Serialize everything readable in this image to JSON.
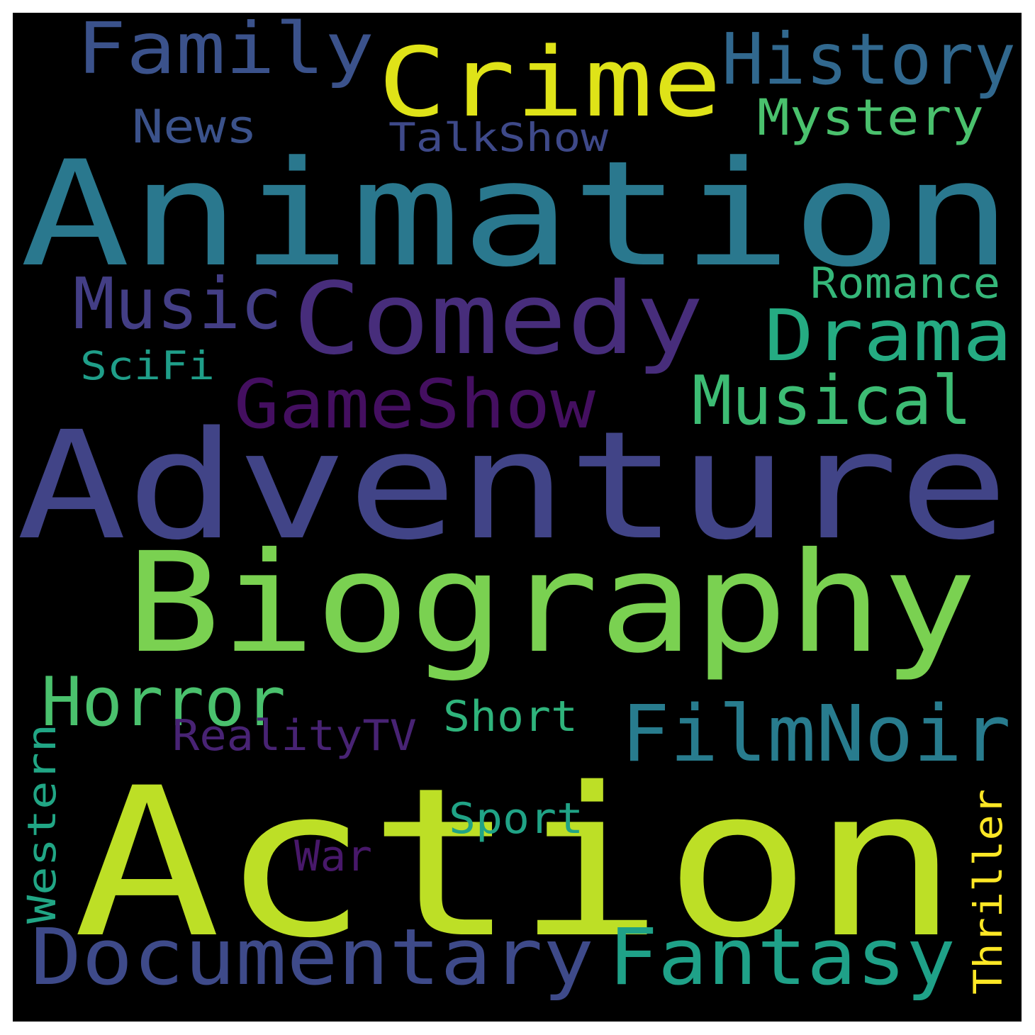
{
  "background_color": "#000000",
  "words": [
    {
      "text": "Action",
      "color": "#bddf26"
    },
    {
      "text": "Adventure",
      "color": "#414487"
    },
    {
      "text": "Animation",
      "color": "#2a788e"
    },
    {
      "text": "Biography",
      "color": "#7ad151"
    },
    {
      "text": "Comedy",
      "color": "#472d7b"
    },
    {
      "text": "Crime",
      "color": "#dfe318"
    },
    {
      "text": "Documentary",
      "color": "#3e4a89"
    },
    {
      "text": "Fantasy",
      "color": "#1fa188"
    },
    {
      "text": "FilmNoir",
      "color": "#287c8e"
    },
    {
      "text": "Family",
      "color": "#3b528b"
    },
    {
      "text": "History",
      "color": "#31688e"
    },
    {
      "text": "Drama",
      "color": "#25ab82"
    },
    {
      "text": "Music",
      "color": "#433e85"
    },
    {
      "text": "GameShow",
      "color": "#440f60"
    },
    {
      "text": "Musical",
      "color": "#3dbc74"
    },
    {
      "text": "Horror",
      "color": "#4ac16d"
    },
    {
      "text": "Mystery",
      "color": "#4ac16d"
    },
    {
      "text": "Romance",
      "color": "#35b779"
    },
    {
      "text": "News",
      "color": "#3b528b"
    },
    {
      "text": "TalkShow",
      "color": "#3e4989"
    },
    {
      "text": "SciFi",
      "color": "#1f9e89"
    },
    {
      "text": "Short",
      "color": "#2fb47c"
    },
    {
      "text": "RealityTV",
      "color": "#482374"
    },
    {
      "text": "Sport",
      "color": "#20a386"
    },
    {
      "text": "War",
      "color": "#48186a"
    },
    {
      "text": "Western",
      "color": "#21a685"
    },
    {
      "text": "Thriller",
      "color": "#fde725"
    }
  ]
}
